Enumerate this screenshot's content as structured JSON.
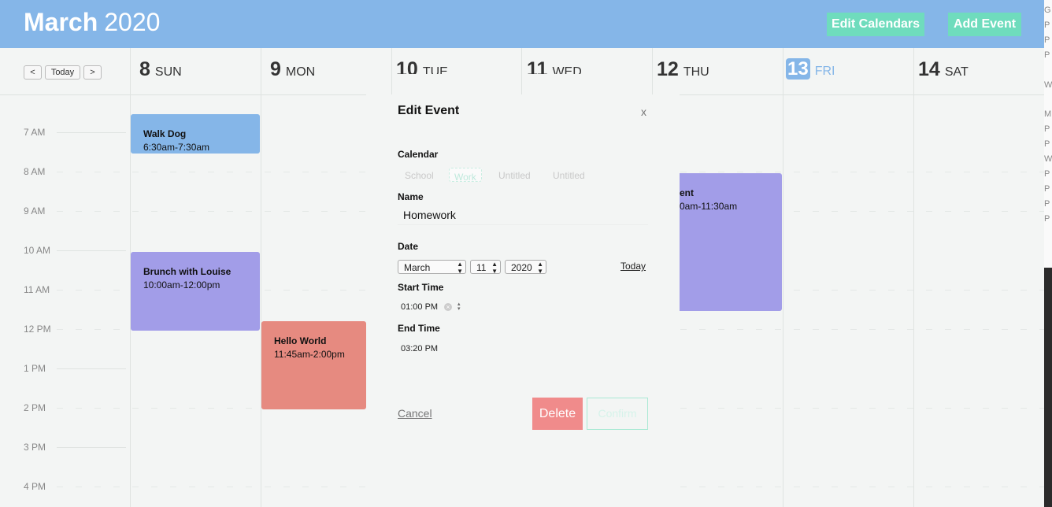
{
  "header": {
    "month": "March",
    "year": "2020",
    "edit_calendars_label": "Edit Calendars",
    "add_event_label": "Add Event"
  },
  "nav": {
    "prev_label": "<",
    "today_label": "Today",
    "next_label": ">"
  },
  "days": [
    {
      "num": "8",
      "name": "SUN"
    },
    {
      "num": "9",
      "name": "MON"
    },
    {
      "num": "10",
      "name": "TUE"
    },
    {
      "num": "11",
      "name": "WED"
    },
    {
      "num": "12",
      "name": "THU"
    },
    {
      "num": "13",
      "name": "FRI"
    },
    {
      "num": "14",
      "name": "SAT"
    }
  ],
  "hours": [
    "7 AM",
    "8 AM",
    "9 AM",
    "10 AM",
    "11 AM",
    "12 PM",
    "1 PM",
    "2 PM",
    "3 PM",
    "4 PM"
  ],
  "events": [
    {
      "name": "Walk Dog",
      "time": "6:30am-7:30am",
      "color": "#85b6e8"
    },
    {
      "name": "Brunch with Louise",
      "time": "10:00am-12:00pm",
      "color": "#a29de8"
    },
    {
      "name": "Hello World",
      "time": "11:45am-2:00pm",
      "color": "#e68a80"
    },
    {
      "name": "ent",
      "time": "0am-11:30am",
      "color": "#a29de8"
    }
  ],
  "modal": {
    "title": "Edit Event",
    "close": "x",
    "calendar_label": "Calendar",
    "calendars": [
      "School",
      "Work",
      "Untitled",
      "Untitled"
    ],
    "name_label": "Name",
    "name_value": "Homework",
    "date_label": "Date",
    "date_month": "March",
    "date_day": "11",
    "date_year": "2020",
    "today_link": "Today",
    "start_label": "Start Time",
    "start_value": "01:00 PM",
    "end_label": "End Time",
    "end_value": "03:20 PM",
    "cancel_label": "Cancel",
    "delete_label": "Delete",
    "confirm_label": "Confirm"
  },
  "side_letters": [
    "G",
    "P",
    "P",
    "P",
    "W",
    "M",
    "P",
    "P",
    "W",
    "P",
    "P",
    "P",
    "P"
  ]
}
